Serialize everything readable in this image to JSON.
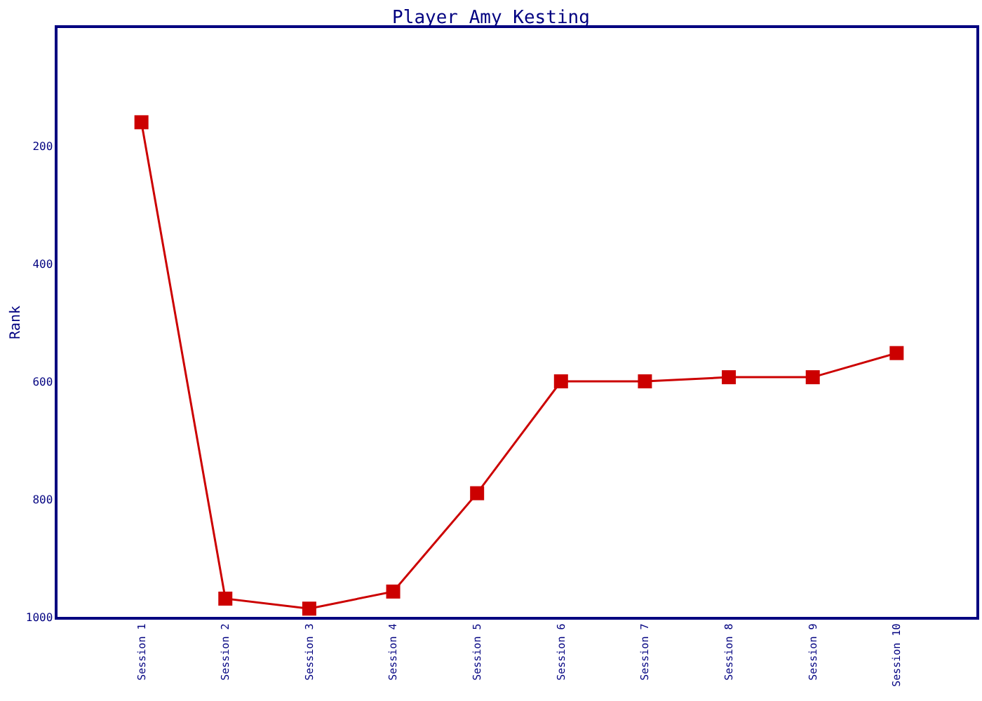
{
  "chart_data": {
    "type": "line",
    "title": "Player Amy Kesting",
    "ylabel": "Rank",
    "categories": [
      "Session 1",
      "Session 2",
      "Session 3",
      "Session 4",
      "Session 5",
      "Session 6",
      "Session 7",
      "Session 8",
      "Session 9",
      "Session 10"
    ],
    "series": [
      {
        "color": "#cc0000",
        "values": [
          160,
          969,
          986,
          957,
          790,
          600,
          600,
          593,
          593,
          552
        ]
      }
    ],
    "ylim": [
      1000,
      0
    ],
    "yticks": [
      200,
      400,
      600,
      800,
      1000
    ],
    "marker": "square",
    "line_style": "solid"
  }
}
